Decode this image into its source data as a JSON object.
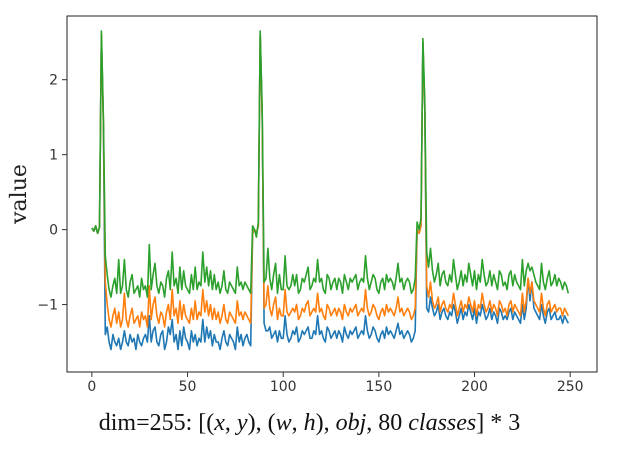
{
  "chart_data": {
    "type": "line",
    "title": "",
    "xlabel": "",
    "ylabel": "value",
    "xlim": [
      -13,
      264
    ],
    "ylim": [
      -1.9,
      2.85
    ],
    "xticks": [
      0,
      50,
      100,
      150,
      200,
      250
    ],
    "yticks": [
      2,
      1,
      0,
      -1
    ],
    "grid": false,
    "legend": "none",
    "colors": [
      "#1f77b4",
      "#ff7f0e",
      "#2ca02c"
    ],
    "series": [
      {
        "values": [
          0.02,
          -0.02,
          0.05,
          -0.05,
          0.03,
          2.6,
          1.4,
          -1.4,
          -1.3,
          -1.5,
          -1.6,
          -1.4,
          -1.5,
          -1.55,
          -1.45,
          -1.6,
          -1.5,
          -1.35,
          -1.5,
          -1.55,
          -1.4,
          -1.5,
          -1.45,
          -1.6,
          -1.4,
          -1.5,
          -1.55,
          -1.45,
          -1.4,
          -1.5,
          -1.15,
          -1.5,
          -1.35,
          -1.3,
          -1.5,
          -1.55,
          -1.4,
          -1.35,
          -1.6,
          -1.5,
          -1.3,
          -1.4,
          -1.2,
          -1.5,
          -1.4,
          -1.6,
          -1.35,
          -1.55,
          -1.3,
          -1.45,
          -1.5,
          -1.6,
          -1.35,
          -1.5,
          -1.4,
          -1.55,
          -1.45,
          -1.5,
          -1.2,
          -1.5,
          -1.3,
          -1.45,
          -1.35,
          -1.55,
          -1.4,
          -1.5,
          -1.5,
          -1.6,
          -1.45,
          -1.35,
          -1.5,
          -1.55,
          -1.4,
          -1.45,
          -1.5,
          -1.6,
          -1.3,
          -1.5,
          -1.4,
          -1.55,
          -1.45,
          -1.4,
          -1.5,
          -1.55,
          -0.05,
          0.0,
          -0.05,
          0.05,
          2.6,
          1.5,
          -1.25,
          -1.35,
          -1.35,
          -1.3,
          -1.45,
          -1.4,
          -1.35,
          -1.5,
          -1.35,
          -1.45,
          -1.45,
          -1.15,
          -1.4,
          -1.5,
          -1.45,
          -1.35,
          -1.4,
          -1.3,
          -1.5,
          -1.45,
          -1.35,
          -1.4,
          -1.35,
          -1.3,
          -1.45,
          -1.45,
          -1.35,
          -1.4,
          -1.15,
          -1.4,
          -1.35,
          -1.45,
          -1.5,
          -1.3,
          -1.35,
          -1.45,
          -1.4,
          -1.35,
          -1.45,
          -1.35,
          -1.4,
          -1.5,
          -1.3,
          -1.4,
          -1.45,
          -1.35,
          -1.4,
          -1.35,
          -1.3,
          -1.45,
          -1.4,
          -1.35,
          -1.4,
          -1.15,
          -1.35,
          -1.45,
          -1.4,
          -1.3,
          -1.35,
          -1.45,
          -1.5,
          -1.4,
          -1.35,
          -1.45,
          -1.3,
          -1.4,
          -1.35,
          -1.4,
          -1.45,
          -1.35,
          -1.25,
          -1.4,
          -1.35,
          -1.45,
          -1.4,
          -1.35,
          -1.4,
          -1.5,
          -1.45,
          -1.35,
          0.0,
          -0.05,
          0.05,
          2.5,
          1.6,
          -1.05,
          -1.1,
          -0.9,
          -1.05,
          -1.15,
          -1.1,
          -1.0,
          -1.2,
          -1.1,
          -1.05,
          -1.15,
          -1.2,
          -1.1,
          -1.15,
          -1.0,
          -1.1,
          -1.25,
          -1.15,
          -1.05,
          -1.2,
          -1.1,
          -1.15,
          -1.0,
          -1.1,
          -1.2,
          -1.05,
          -1.25,
          -1.1,
          -1.15,
          -1.0,
          -1.1,
          -1.2,
          -1.15,
          -1.05,
          -1.2,
          -1.1,
          -1.15,
          -1.25,
          -1.05,
          -1.1,
          -1.2,
          -1.15,
          -1.2,
          -1.1,
          -1.05,
          -1.2,
          -1.1,
          -1.15,
          -1.2,
          -1.25,
          -1.0,
          -1.2,
          -1.05,
          -0.65,
          -0.95,
          -0.7,
          -1.05,
          -1.1,
          -1.15,
          -1.2,
          -1.0,
          -1.15,
          -1.25,
          -1.1,
          -1.05,
          -1.2,
          -1.15,
          -1.1,
          -1.2,
          -1.2,
          -1.15,
          -1.25,
          -1.15,
          -1.2,
          -1.25
        ]
      },
      {
        "values": [
          0.02,
          -0.02,
          0.05,
          -0.05,
          0.03,
          2.6,
          1.4,
          -0.7,
          -1.0,
          -1.2,
          -1.3,
          -1.15,
          -1.05,
          -1.25,
          -1.1,
          -1.3,
          -1.2,
          -0.85,
          -1.2,
          -1.3,
          -1.15,
          -1.05,
          -1.25,
          -1.2,
          -1.15,
          -1.3,
          -1.1,
          -1.2,
          -1.15,
          -1.3,
          -0.75,
          -1.2,
          -1.0,
          -0.9,
          -1.15,
          -1.25,
          -1.1,
          -1.15,
          -1.3,
          -1.1,
          -1.0,
          -1.2,
          -0.8,
          -1.15,
          -1.05,
          -1.25,
          -0.95,
          -1.2,
          -1.0,
          -1.15,
          -1.2,
          -1.25,
          -1.05,
          -1.2,
          -0.95,
          -1.2,
          -1.1,
          -1.15,
          -0.8,
          -1.1,
          -0.95,
          -1.15,
          -1.0,
          -1.2,
          -1.05,
          -1.2,
          -1.1,
          -1.25,
          -1.15,
          -1.0,
          -1.2,
          -1.25,
          -1.1,
          -1.15,
          -1.2,
          -1.25,
          -0.95,
          -1.15,
          -1.1,
          -1.2,
          -1.1,
          -1.15,
          -1.2,
          -1.25,
          -0.05,
          0.0,
          -0.05,
          0.05,
          2.6,
          1.5,
          -1.05,
          -1.0,
          -0.75,
          -1.05,
          -1.15,
          -1.0,
          -0.9,
          -1.2,
          -1.05,
          -1.15,
          -1.15,
          -0.8,
          -1.1,
          -1.15,
          -1.1,
          -1.05,
          -1.1,
          -1.0,
          -1.2,
          -1.15,
          -1.05,
          -1.1,
          -1.0,
          -0.95,
          -1.15,
          -1.1,
          -1.05,
          -1.1,
          -0.85,
          -1.1,
          -1.05,
          -1.15,
          -1.2,
          -1.0,
          -1.05,
          -1.15,
          -1.1,
          -1.05,
          -1.15,
          -1.05,
          -1.1,
          -1.2,
          -1.0,
          -1.1,
          -1.15,
          -1.05,
          -1.1,
          -1.05,
          -1.0,
          -1.15,
          -1.1,
          -1.05,
          -1.1,
          -0.8,
          -1.05,
          -1.15,
          -1.1,
          -1.0,
          -1.05,
          -1.15,
          -1.2,
          -1.1,
          -1.05,
          -1.15,
          -1.0,
          -1.1,
          -1.05,
          -1.1,
          -1.15,
          -1.05,
          -0.9,
          -1.1,
          -1.05,
          -1.15,
          -1.1,
          -1.05,
          -1.1,
          -1.2,
          -1.15,
          -1.05,
          0.0,
          -0.05,
          0.05,
          2.5,
          1.6,
          -0.75,
          -0.9,
          -0.7,
          -0.95,
          -1.05,
          -1.0,
          -0.9,
          -1.1,
          -1.0,
          -0.95,
          -1.05,
          -1.1,
          -1.0,
          -1.05,
          -0.85,
          -1.0,
          -1.15,
          -1.05,
          -0.95,
          -1.1,
          -1.0,
          -1.05,
          -0.9,
          -1.0,
          -1.1,
          -0.95,
          -1.15,
          -1.0,
          -1.05,
          -0.85,
          -1.0,
          -1.1,
          -1.05,
          -0.95,
          -1.1,
          -1.0,
          -1.05,
          -1.15,
          -0.95,
          -1.0,
          -1.1,
          -1.05,
          -1.15,
          -1.0,
          -0.95,
          -1.1,
          -1.0,
          -1.05,
          -1.1,
          -1.15,
          -0.85,
          -1.1,
          -0.95,
          -0.65,
          -0.85,
          -0.7,
          -0.95,
          -1.0,
          -1.05,
          -1.1,
          -0.85,
          -1.05,
          -1.15,
          -1.0,
          -0.95,
          -1.1,
          -1.05,
          -1.0,
          -1.1,
          -1.05,
          -1.05,
          -1.15,
          -1.05,
          -1.1,
          -1.15
        ]
      },
      {
        "values": [
          0.02,
          -0.02,
          0.05,
          -0.05,
          0.03,
          2.65,
          1.5,
          -0.35,
          -0.6,
          -0.8,
          -0.9,
          -0.75,
          -0.65,
          -0.85,
          -0.4,
          -0.85,
          -0.75,
          -0.4,
          -0.8,
          -0.9,
          -0.7,
          -0.6,
          -0.85,
          -0.8,
          -0.75,
          -0.9,
          -0.65,
          -0.8,
          -0.75,
          -0.9,
          -0.2,
          -0.8,
          -0.6,
          -0.45,
          -0.75,
          -0.85,
          -0.7,
          -0.75,
          -0.9,
          -0.65,
          -0.55,
          -0.8,
          -0.3,
          -0.75,
          -0.65,
          -0.85,
          -0.5,
          -0.8,
          -0.55,
          -0.75,
          -0.8,
          -0.85,
          -0.6,
          -0.8,
          -0.5,
          -0.8,
          -0.7,
          -0.75,
          -0.3,
          -0.7,
          -0.5,
          -0.75,
          -0.55,
          -0.8,
          -0.6,
          -0.8,
          -0.7,
          -0.85,
          -0.75,
          -0.55,
          -0.8,
          -0.85,
          -0.7,
          -0.75,
          -0.8,
          -0.85,
          -0.5,
          -0.75,
          -0.7,
          -0.8,
          -0.7,
          -0.75,
          -0.8,
          -0.85,
          0.05,
          0.0,
          -0.1,
          0.1,
          2.65,
          1.6,
          -0.7,
          -0.65,
          -0.25,
          -0.65,
          -0.8,
          -0.6,
          -0.45,
          -0.85,
          -0.6,
          -0.8,
          -0.8,
          -0.35,
          -0.75,
          -0.8,
          -0.75,
          -0.6,
          -0.75,
          -0.6,
          -0.85,
          -0.8,
          -0.65,
          -0.7,
          -0.6,
          -0.5,
          -0.8,
          -0.75,
          -0.65,
          -0.7,
          -0.4,
          -0.7,
          -0.65,
          -0.8,
          -0.85,
          -0.6,
          -0.65,
          -0.8,
          -0.7,
          -0.65,
          -0.8,
          -0.65,
          -0.7,
          -0.85,
          -0.6,
          -0.7,
          -0.8,
          -0.65,
          -0.7,
          -0.65,
          -0.6,
          -0.8,
          -0.7,
          -0.65,
          -0.7,
          -0.35,
          -0.65,
          -0.8,
          -0.7,
          -0.6,
          -0.65,
          -0.8,
          -0.85,
          -0.7,
          -0.65,
          -0.8,
          -0.6,
          -0.7,
          -0.65,
          -0.7,
          -0.8,
          -0.65,
          -0.45,
          -0.7,
          -0.65,
          -0.8,
          -0.7,
          -0.65,
          -0.7,
          -0.85,
          -0.8,
          -0.65,
          0.1,
          0.0,
          0.15,
          2.55,
          1.7,
          -0.3,
          -0.5,
          -0.25,
          -0.55,
          -0.7,
          -0.6,
          -0.45,
          -0.75,
          -0.6,
          -0.55,
          -0.7,
          -0.75,
          -0.6,
          -0.7,
          -0.4,
          -0.6,
          -0.8,
          -0.7,
          -0.55,
          -0.75,
          -0.6,
          -0.7,
          -0.45,
          -0.6,
          -0.75,
          -0.55,
          -0.8,
          -0.6,
          -0.7,
          -0.4,
          -0.6,
          -0.75,
          -0.7,
          -0.55,
          -0.75,
          -0.6,
          -0.7,
          -0.8,
          -0.55,
          -0.6,
          -0.75,
          -0.7,
          -0.8,
          -0.6,
          -0.55,
          -0.75,
          -0.6,
          -0.7,
          -0.75,
          -0.8,
          -0.4,
          -0.75,
          -0.55,
          -0.45,
          -0.55,
          -0.5,
          -0.6,
          -0.7,
          -0.75,
          -0.8,
          -0.45,
          -0.7,
          -0.8,
          -0.65,
          -0.55,
          -0.75,
          -0.7,
          -0.6,
          -0.75,
          -0.65,
          -0.7,
          -0.8,
          -0.7,
          -0.75,
          -0.85
        ]
      }
    ]
  },
  "caption": {
    "prefix": "dim=255: [(",
    "x": "x",
    "comma1": ", ",
    "y": "y",
    "mid1": "), (",
    "w": "w",
    "comma2": ", ",
    "h": "h",
    "mid2": "), ",
    "obj": "obj",
    "mid3": ", 80 ",
    "classes": "classes",
    "suffix": "] * 3"
  }
}
